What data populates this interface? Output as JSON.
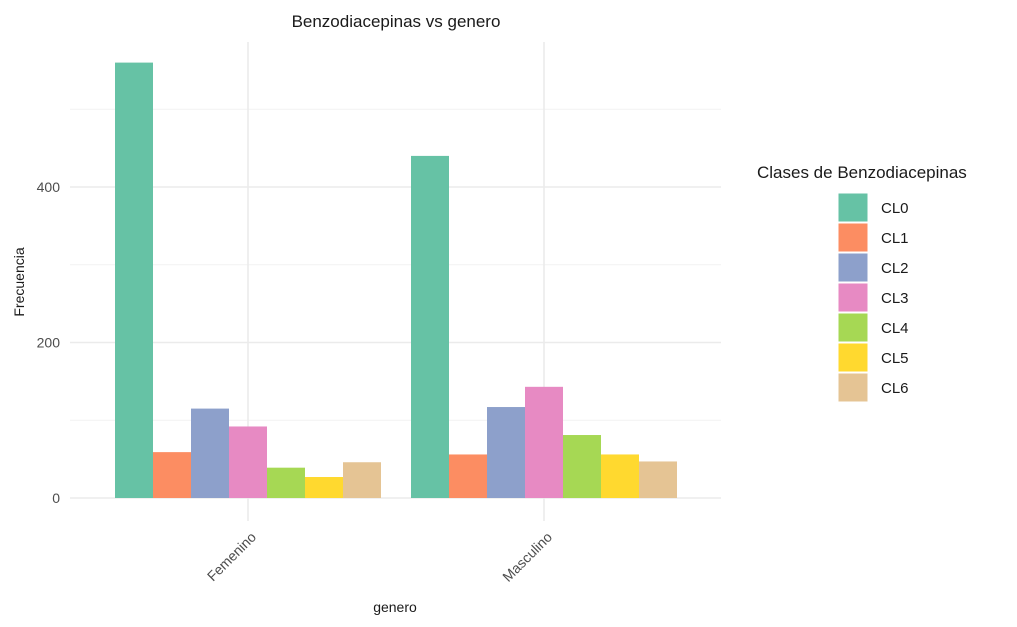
{
  "chart_data": {
    "type": "bar",
    "title": "Benzodiacepinas vs genero",
    "xlabel": "genero",
    "ylabel": "Frecuencia",
    "categories": [
      "Femenino",
      "Masculino"
    ],
    "yticks": [
      0,
      200,
      400
    ],
    "ylim": [
      0,
      585
    ],
    "grid": true,
    "legend": {
      "title": "Clases de Benzodiacepinas",
      "position": "right"
    },
    "series": [
      {
        "name": "CL0",
        "color": "#66C2A5",
        "values": [
          560,
          440
        ]
      },
      {
        "name": "CL1",
        "color": "#FC8D62",
        "values": [
          59,
          56
        ]
      },
      {
        "name": "CL2",
        "color": "#8DA0CB",
        "values": [
          115,
          117
        ]
      },
      {
        "name": "CL3",
        "color": "#E78AC3",
        "values": [
          92,
          143
        ]
      },
      {
        "name": "CL4",
        "color": "#A6D854",
        "values": [
          39,
          81
        ]
      },
      {
        "name": "CL5",
        "color": "#FFD92F",
        "values": [
          27,
          56
        ]
      },
      {
        "name": "CL6",
        "color": "#E5C494",
        "values": [
          46,
          47
        ]
      }
    ]
  }
}
